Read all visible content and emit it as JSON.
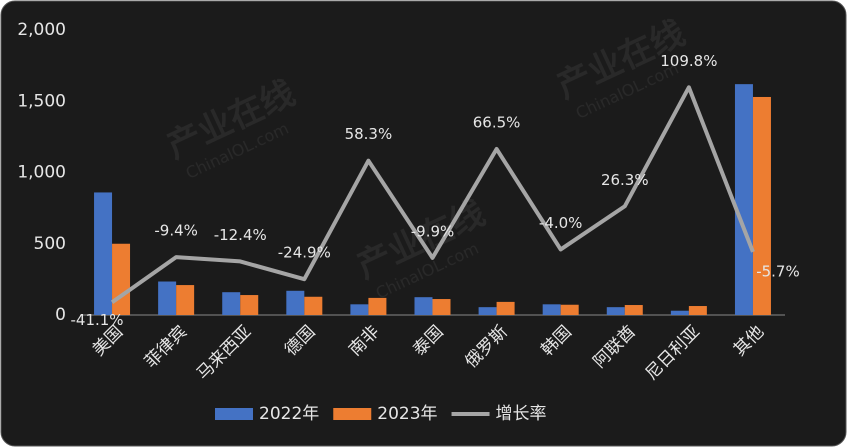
{
  "chart_data": {
    "type": "bar",
    "watermark": "产业在线",
    "watermark_sub": "ChinaIOL.com",
    "categories": [
      "美国",
      "菲律宾",
      "马来西亚",
      "德国",
      "南非",
      "泰国",
      "俄罗斯",
      "韩国",
      "阿联酋",
      "尼日利亚",
      "其他"
    ],
    "series": [
      {
        "name": "2022年",
        "type": "bar",
        "color": "#4472c4",
        "values": [
          860,
          235,
          160,
          170,
          75,
          125,
          55,
          75,
          55,
          30,
          1620
        ]
      },
      {
        "name": "2023年",
        "type": "bar",
        "color": "#ed7d31",
        "values": [
          500,
          210,
          140,
          128,
          120,
          112,
          92,
          72,
          70,
          63,
          1530
        ]
      },
      {
        "name": "增长率",
        "type": "line",
        "axis": "y2",
        "color": "#a5a5a5",
        "values": [
          -41.1,
          -9.4,
          -12.4,
          -24.9,
          58.3,
          -9.9,
          66.5,
          -4.0,
          26.3,
          109.8,
          -5.7
        ],
        "value_labels": [
          "-41.1%",
          "-9.4%",
          "-12.4%",
          "-24.9%",
          "58.3%",
          "-9.9%",
          "66.5%",
          "-4.0%",
          "26.3%",
          "109.8%",
          "-5.7%"
        ]
      }
    ],
    "ylim": [
      0,
      2000
    ],
    "yticks": [
      0,
      500,
      {
        "value": 1000,
        "label": "1,000"
      },
      {
        "value": 1500,
        "label": "1,500"
      },
      {
        "value": 2000,
        "label": "2,000"
      }
    ],
    "y2lim": [
      -50,
      150
    ],
    "grid": false,
    "legend": "bottom"
  }
}
